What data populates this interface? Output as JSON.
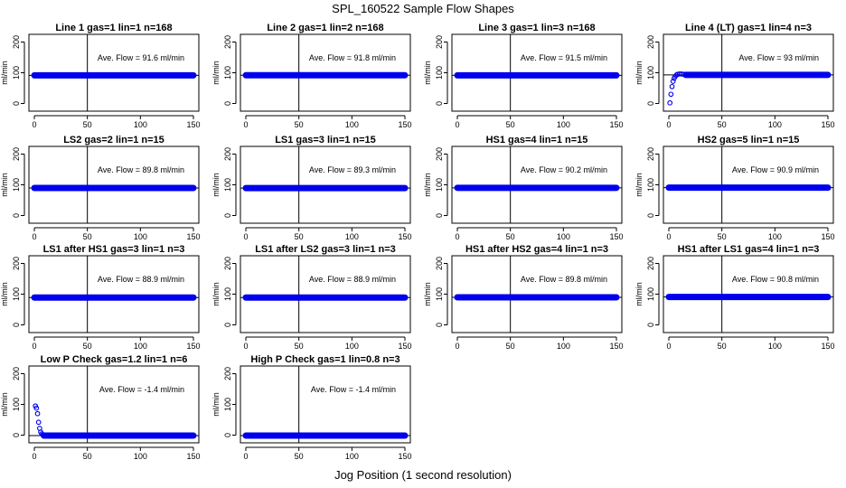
{
  "figure": {
    "title": "SPL_160522  Sample Flow Shapes",
    "xlabel": "Jog Position (1 second resolution)",
    "ylabel": "ml/min",
    "annotation_prefix": "Ave. Flow = ",
    "annotation_unit": "ml/min",
    "colors": {
      "points": "#0000ee",
      "axes": "#000000",
      "lines": "#000000"
    }
  },
  "chart_data": [
    {
      "type": "scatter",
      "title": "Line 1 gas=1 lin=1 n=168",
      "ave_flow": "91.6",
      "xlim": [
        0,
        150
      ],
      "ylim": [
        -25,
        225
      ],
      "xticks": [
        0,
        50,
        100,
        150
      ],
      "yticks": [
        0,
        100,
        200
      ],
      "vline_x": 50,
      "hline_y": 91.6,
      "series": [
        {
          "segments": [
            {
              "x_start": 0,
              "x_end": 150,
              "y": 91.6
            }
          ]
        }
      ]
    },
    {
      "type": "scatter",
      "title": "Line 2 gas=1 lin=2 n=168",
      "ave_flow": "91.8",
      "xlim": [
        0,
        150
      ],
      "ylim": [
        -25,
        225
      ],
      "xticks": [
        0,
        50,
        100,
        150
      ],
      "yticks": [
        0,
        100,
        200
      ],
      "vline_x": 50,
      "hline_y": 91.8,
      "series": [
        {
          "segments": [
            {
              "x_start": 0,
              "x_end": 150,
              "y": 91.8
            }
          ]
        }
      ]
    },
    {
      "type": "scatter",
      "title": "Line 3 gas=1 lin=3 n=168",
      "ave_flow": "91.5",
      "xlim": [
        0,
        150
      ],
      "ylim": [
        -25,
        225
      ],
      "xticks": [
        0,
        50,
        100,
        150
      ],
      "yticks": [
        0,
        100,
        200
      ],
      "vline_x": 50,
      "hline_y": 91.5,
      "series": [
        {
          "segments": [
            {
              "x_start": 0,
              "x_end": 150,
              "y": 91.5
            }
          ]
        }
      ]
    },
    {
      "type": "scatter",
      "title": "Line 4 (LT) gas=1 lin=4 n=3",
      "ave_flow": "93",
      "xlim": [
        0,
        150
      ],
      "ylim": [
        -25,
        225
      ],
      "xticks": [
        0,
        50,
        100,
        150
      ],
      "yticks": [
        0,
        100,
        200
      ],
      "vline_x": 50,
      "hline_y": 93,
      "series": [
        {
          "points": [
            [
              1,
              2
            ],
            [
              2,
              30
            ],
            [
              3,
              55
            ],
            [
              4,
              72
            ],
            [
              5,
              82
            ],
            [
              6,
              88
            ],
            [
              7,
              92
            ],
            [
              8,
              95
            ],
            [
              10,
              96
            ],
            [
              12,
              96
            ],
            [
              14,
              95
            ],
            [
              16,
              95
            ]
          ],
          "segments": [
            {
              "x_start": 16,
              "x_end": 150,
              "y": 93
            }
          ]
        }
      ]
    },
    {
      "type": "scatter",
      "title": "LS2 gas=2 lin=1 n=15",
      "ave_flow": "89.8",
      "xlim": [
        0,
        150
      ],
      "ylim": [
        -25,
        225
      ],
      "xticks": [
        0,
        50,
        100,
        150
      ],
      "yticks": [
        0,
        100,
        200
      ],
      "vline_x": 50,
      "hline_y": 89.8,
      "series": [
        {
          "segments": [
            {
              "x_start": 0,
              "x_end": 150,
              "y": 89.8
            }
          ]
        }
      ]
    },
    {
      "type": "scatter",
      "title": "LS1 gas=3 lin=1 n=15",
      "ave_flow": "89.3",
      "xlim": [
        0,
        150
      ],
      "ylim": [
        -25,
        225
      ],
      "xticks": [
        0,
        50,
        100,
        150
      ],
      "yticks": [
        0,
        100,
        200
      ],
      "vline_x": 50,
      "hline_y": 89.3,
      "series": [
        {
          "segments": [
            {
              "x_start": 0,
              "x_end": 150,
              "y": 89.3
            }
          ]
        }
      ]
    },
    {
      "type": "scatter",
      "title": "HS1 gas=4 lin=1 n=15",
      "ave_flow": "90.2",
      "xlim": [
        0,
        150
      ],
      "ylim": [
        -25,
        225
      ],
      "xticks": [
        0,
        50,
        100,
        150
      ],
      "yticks": [
        0,
        100,
        200
      ],
      "vline_x": 50,
      "hline_y": 90.2,
      "series": [
        {
          "segments": [
            {
              "x_start": 0,
              "x_end": 150,
              "y": 90.2
            }
          ]
        }
      ]
    },
    {
      "type": "scatter",
      "title": "HS2 gas=5 lin=1 n=15",
      "ave_flow": "90.9",
      "xlim": [
        0,
        150
      ],
      "ylim": [
        -25,
        225
      ],
      "xticks": [
        0,
        50,
        100,
        150
      ],
      "yticks": [
        0,
        100,
        200
      ],
      "vline_x": 50,
      "hline_y": 90.9,
      "series": [
        {
          "segments": [
            {
              "x_start": 0,
              "x_end": 150,
              "y": 90.9
            }
          ]
        }
      ]
    },
    {
      "type": "scatter",
      "title": "LS1 after HS1 gas=3 lin=1 n=3",
      "ave_flow": "88.9",
      "xlim": [
        0,
        150
      ],
      "ylim": [
        -25,
        225
      ],
      "xticks": [
        0,
        50,
        100,
        150
      ],
      "yticks": [
        0,
        100,
        200
      ],
      "vline_x": 50,
      "hline_y": 88.9,
      "series": [
        {
          "segments": [
            {
              "x_start": 0,
              "x_end": 150,
              "y": 88.9
            }
          ]
        }
      ]
    },
    {
      "type": "scatter",
      "title": "LS1 after LS2 gas=3 lin=1 n=3",
      "ave_flow": "88.9",
      "xlim": [
        0,
        150
      ],
      "ylim": [
        -25,
        225
      ],
      "xticks": [
        0,
        50,
        100,
        150
      ],
      "yticks": [
        0,
        100,
        200
      ],
      "vline_x": 50,
      "hline_y": 88.9,
      "series": [
        {
          "segments": [
            {
              "x_start": 0,
              "x_end": 150,
              "y": 88.9
            }
          ]
        }
      ]
    },
    {
      "type": "scatter",
      "title": "HS1 after HS2 gas=4 lin=1 n=3",
      "ave_flow": "89.8",
      "xlim": [
        0,
        150
      ],
      "ylim": [
        -25,
        225
      ],
      "xticks": [
        0,
        50,
        100,
        150
      ],
      "yticks": [
        0,
        100,
        200
      ],
      "vline_x": 50,
      "hline_y": 89.8,
      "series": [
        {
          "segments": [
            {
              "x_start": 0,
              "x_end": 150,
              "y": 89.8
            }
          ]
        }
      ]
    },
    {
      "type": "scatter",
      "title": "HS1 after LS1 gas=4 lin=1 n=3",
      "ave_flow": "90.8",
      "xlim": [
        0,
        150
      ],
      "ylim": [
        -25,
        225
      ],
      "xticks": [
        0,
        50,
        100,
        150
      ],
      "yticks": [
        0,
        100,
        200
      ],
      "vline_x": 50,
      "hline_y": 90.8,
      "series": [
        {
          "segments": [
            {
              "x_start": 0,
              "x_end": 150,
              "y": 90.8
            }
          ]
        }
      ]
    },
    {
      "type": "scatter",
      "title": "Low P Check gas=1.2 lin=1 n=6",
      "ave_flow": "-1.4",
      "xlim": [
        0,
        150
      ],
      "ylim": [
        -25,
        225
      ],
      "xticks": [
        0,
        50,
        100,
        150
      ],
      "yticks": [
        0,
        100,
        200
      ],
      "vline_x": 50,
      "hline_y": -1.4,
      "series": [
        {
          "points": [
            [
              1,
              95
            ],
            [
              2,
              88
            ],
            [
              3,
              70
            ],
            [
              4,
              42
            ],
            [
              5,
              22
            ],
            [
              6,
              10
            ],
            [
              7,
              4
            ],
            [
              8,
              1
            ],
            [
              9,
              0
            ]
          ],
          "segments": [
            {
              "x_start": 9,
              "x_end": 150,
              "y": -1.4
            }
          ]
        }
      ]
    },
    {
      "type": "scatter",
      "title": "High P Check gas=1 lin=0.8 n=3",
      "ave_flow": "-1.4",
      "xlim": [
        0,
        150
      ],
      "ylim": [
        -25,
        225
      ],
      "xticks": [
        0,
        50,
        100,
        150
      ],
      "yticks": [
        0,
        100,
        200
      ],
      "vline_x": 50,
      "hline_y": -1.4,
      "series": [
        {
          "segments": [
            {
              "x_start": 0,
              "x_end": 150,
              "y": -1.4
            }
          ]
        }
      ]
    }
  ]
}
